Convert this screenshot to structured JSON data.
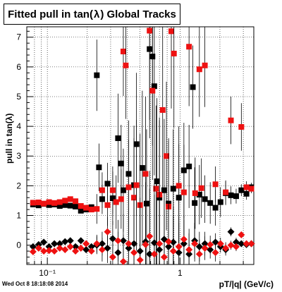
{
  "chart_data": {
    "type": "scatter",
    "title_prefix": "Fitted pull in tan(",
    "title_symbol": "λ",
    "title_suffix": ")  Global Tracks",
    "xlabel": "pT/|q| (GeV/c)",
    "ylabel_prefix": "pull in tan(",
    "ylabel_symbol": "λ",
    "ylabel_suffix": ")",
    "x_scale": "log",
    "xlim": [
      0.07,
      3.6
    ],
    "ylim": [
      -0.65,
      7.35
    ],
    "x_major_ticks": [
      {
        "value": 0.1,
        "label": "10⁻¹"
      },
      {
        "value": 1,
        "label": "1"
      }
    ],
    "y_major_ticks": [
      0,
      1,
      2,
      3,
      4,
      5,
      6,
      7
    ],
    "grid": true,
    "series": [
      {
        "marker": "square",
        "color": "#000000",
        "points": [
          [
            0.078,
            1.37,
            0.05
          ],
          [
            0.086,
            1.34,
            0.05
          ],
          [
            0.094,
            1.39,
            0.05
          ],
          [
            0.103,
            1.35,
            0.05
          ],
          [
            0.113,
            1.37,
            0.05
          ],
          [
            0.124,
            1.32,
            0.06
          ],
          [
            0.136,
            1.35,
            0.06
          ],
          [
            0.149,
            1.33,
            0.06
          ],
          [
            0.163,
            1.3,
            0.07
          ],
          [
            0.179,
            1.16,
            0.07
          ],
          [
            0.196,
            1.2,
            0.08
          ],
          [
            0.215,
            1.28,
            0.08
          ],
          [
            0.236,
            5.72,
            1.2
          ],
          [
            0.245,
            2.62,
            0.8
          ],
          [
            0.259,
            1.55,
            0.5
          ],
          [
            0.284,
            2.07,
            0.7
          ],
          [
            0.311,
            1.58,
            0.9
          ],
          [
            0.341,
            3.6,
            1.5
          ],
          [
            0.36,
            2.75,
            1.3
          ],
          [
            0.374,
            1.85,
            1.4
          ],
          [
            0.41,
            2.4,
            1.8
          ],
          [
            0.45,
            2.02,
            2.0
          ],
          [
            0.47,
            3.4,
            2.4
          ],
          [
            0.52,
            2.6,
            2.6
          ],
          [
            0.56,
            1.4,
            2.5
          ],
          [
            0.59,
            6.6,
            3.0
          ],
          [
            0.62,
            6.35,
            3.0
          ],
          [
            0.64,
            5.35,
            3.0
          ],
          [
            0.67,
            2.15,
            2.8
          ],
          [
            0.7,
            1.6,
            2.6
          ],
          [
            0.76,
            1.85,
            2.4
          ],
          [
            0.82,
            1.4,
            2.2
          ],
          [
            0.89,
            1.9,
            2.0
          ],
          [
            0.98,
            1.6,
            1.8
          ],
          [
            1.07,
            2.52,
            1.6
          ],
          [
            1.17,
            2.65,
            1.4
          ],
          [
            1.25,
            5.32,
            1.4
          ],
          [
            1.29,
            1.42,
            1.2
          ],
          [
            1.4,
            1.7,
            1.0
          ],
          [
            1.54,
            1.55,
            0.8
          ],
          [
            1.69,
            1.42,
            0.7
          ],
          [
            1.85,
            1.26,
            0.6
          ],
          [
            2.02,
            1.45,
            0.5
          ],
          [
            2.21,
            1.75,
            0.4
          ],
          [
            2.42,
            1.68,
            0.3
          ],
          [
            2.65,
            1.65,
            0.25
          ],
          [
            2.9,
            1.85,
            0.2
          ],
          [
            3.17,
            1.73,
            0.2
          ],
          [
            3.45,
            1.95,
            0.15
          ]
        ]
      },
      {
        "marker": "square",
        "color": "#ee1111",
        "points": [
          [
            0.078,
            1.43,
            0.05
          ],
          [
            0.086,
            1.44,
            0.05
          ],
          [
            0.094,
            1.4,
            0.05
          ],
          [
            0.103,
            1.45,
            0.05
          ],
          [
            0.113,
            1.42,
            0.05
          ],
          [
            0.124,
            1.45,
            0.06
          ],
          [
            0.136,
            1.5,
            0.06
          ],
          [
            0.149,
            1.55,
            0.06
          ],
          [
            0.163,
            1.48,
            0.07
          ],
          [
            0.179,
            1.32,
            0.07
          ],
          [
            0.196,
            1.26,
            0.08
          ],
          [
            0.215,
            1.2,
            0.08
          ],
          [
            0.236,
            1.22,
            0.5
          ],
          [
            0.259,
            1.85,
            0.6
          ],
          [
            0.284,
            1.35,
            0.7
          ],
          [
            0.311,
            1.85,
            0.8
          ],
          [
            0.33,
            1.45,
            0.9
          ],
          [
            0.36,
            1.55,
            1.0
          ],
          [
            0.374,
            6.52,
            1.5
          ],
          [
            0.39,
            6.05,
            1.8
          ],
          [
            0.41,
            1.95,
            1.6
          ],
          [
            0.45,
            1.6,
            2.0
          ],
          [
            0.47,
            2.02,
            2.2
          ],
          [
            0.5,
            1.35,
            2.4
          ],
          [
            0.55,
            2.4,
            2.6
          ],
          [
            0.59,
            7.22,
            3.0
          ],
          [
            0.62,
            5.2,
            3.0
          ],
          [
            0.66,
            1.9,
            2.8
          ],
          [
            0.7,
            1.7,
            2.6
          ],
          [
            0.74,
            4.55,
            2.8
          ],
          [
            0.79,
            3.0,
            2.5
          ],
          [
            0.82,
            1.3,
            2.2
          ],
          [
            0.86,
            7.2,
            2.6
          ],
          [
            0.9,
            6.45,
            2.5
          ],
          [
            0.98,
            2.0,
            2.0
          ],
          [
            1.07,
            1.78,
            1.6
          ],
          [
            1.17,
            6.68,
            2.0
          ],
          [
            1.3,
            1.75,
            1.2
          ],
          [
            1.4,
            5.92,
            1.6
          ],
          [
            1.45,
            1.92,
            1.0
          ],
          [
            1.54,
            6.05,
            1.4
          ],
          [
            1.85,
            2.05,
            0.6
          ],
          [
            2.21,
            1.78,
            0.4
          ],
          [
            2.42,
            4.2,
            0.8
          ],
          [
            2.9,
            3.98,
            0.8
          ],
          [
            3.17,
            1.95,
            0.2
          ],
          [
            3.45,
            1.9,
            0.15
          ]
        ]
      },
      {
        "marker": "diamond",
        "color": "#000000",
        "points": [
          [
            0.078,
            -0.05,
            0.05
          ],
          [
            0.086,
            0.02,
            0.05
          ],
          [
            0.094,
            0.1,
            0.05
          ],
          [
            0.103,
            -0.05,
            0.05
          ],
          [
            0.113,
            0.05,
            0.06
          ],
          [
            0.124,
            0.05,
            0.06
          ],
          [
            0.136,
            0.12,
            0.06
          ],
          [
            0.149,
            0.15,
            0.07
          ],
          [
            0.163,
            -0.05,
            0.07
          ],
          [
            0.179,
            0.15,
            0.08
          ],
          [
            0.196,
            -0.15,
            0.08
          ],
          [
            0.215,
            -0.05,
            0.1
          ],
          [
            0.236,
            0.0,
            0.3
          ],
          [
            0.259,
            0.05,
            0.4
          ],
          [
            0.284,
            -0.1,
            0.5
          ],
          [
            0.311,
            0.22,
            0.6
          ],
          [
            0.341,
            -0.25,
            0.7
          ],
          [
            0.374,
            0.15,
            0.9
          ],
          [
            0.41,
            -0.1,
            1.2
          ],
          [
            0.45,
            0.05,
            1.5
          ],
          [
            0.5,
            -0.2,
            1.8
          ],
          [
            0.55,
            0.12,
            2.0
          ],
          [
            0.59,
            -0.3,
            2.2
          ],
          [
            0.64,
            0.08,
            2.0
          ],
          [
            0.7,
            -0.15,
            1.8
          ],
          [
            0.76,
            0.2,
            1.6
          ],
          [
            0.82,
            -0.05,
            1.4
          ],
          [
            0.89,
            0.1,
            1.2
          ],
          [
            0.98,
            -0.25,
            1.0
          ],
          [
            1.07,
            0.05,
            0.8
          ],
          [
            1.17,
            -0.3,
            0.7
          ],
          [
            1.29,
            0.15,
            0.6
          ],
          [
            1.4,
            -0.05,
            0.5
          ],
          [
            1.54,
            0.05,
            0.4
          ],
          [
            1.69,
            -0.15,
            0.3
          ],
          [
            1.85,
            0.1,
            0.3
          ],
          [
            2.02,
            -0.05,
            0.2
          ],
          [
            2.21,
            -0.15,
            0.2
          ],
          [
            2.42,
            0.45,
            0.15
          ],
          [
            2.65,
            0.1,
            0.15
          ],
          [
            2.9,
            0.05,
            0.1
          ],
          [
            3.17,
            0.02,
            0.1
          ],
          [
            3.45,
            0.05,
            0.1
          ]
        ]
      },
      {
        "marker": "diamond",
        "color": "#ee1111",
        "points": [
          [
            0.078,
            -0.22,
            0.05
          ],
          [
            0.086,
            -0.1,
            0.05
          ],
          [
            0.094,
            -0.2,
            0.05
          ],
          [
            0.103,
            -0.18,
            0.05
          ],
          [
            0.113,
            -0.2,
            0.06
          ],
          [
            0.124,
            -0.1,
            0.06
          ],
          [
            0.136,
            -0.15,
            0.06
          ],
          [
            0.149,
            -0.05,
            0.07
          ],
          [
            0.163,
            -0.2,
            0.07
          ],
          [
            0.179,
            -0.1,
            0.08
          ],
          [
            0.196,
            0.05,
            0.08
          ],
          [
            0.215,
            -0.2,
            0.1
          ],
          [
            0.236,
            0.05,
            0.3
          ],
          [
            0.259,
            -0.15,
            0.4
          ],
          [
            0.284,
            0.45,
            0.5
          ],
          [
            0.311,
            -0.4,
            0.6
          ],
          [
            0.341,
            0.15,
            0.7
          ],
          [
            0.374,
            -0.55,
            0.9
          ],
          [
            0.41,
            0.05,
            1.2
          ],
          [
            0.45,
            -0.25,
            1.5
          ],
          [
            0.5,
            -0.5,
            1.8
          ],
          [
            0.55,
            0.02,
            2.0
          ],
          [
            0.59,
            0.3,
            2.2
          ],
          [
            0.64,
            -0.3,
            2.0
          ],
          [
            0.7,
            0.05,
            1.8
          ],
          [
            0.76,
            -0.4,
            1.6
          ],
          [
            0.82,
            0.12,
            1.4
          ],
          [
            0.89,
            -0.2,
            1.2
          ],
          [
            0.98,
            -0.05,
            1.0
          ],
          [
            1.07,
            0.2,
            0.8
          ],
          [
            1.17,
            -0.15,
            0.7
          ],
          [
            1.29,
            0.05,
            0.6
          ],
          [
            1.4,
            -0.3,
            0.5
          ],
          [
            1.54,
            -0.1,
            0.4
          ],
          [
            1.69,
            0.02,
            0.3
          ],
          [
            1.85,
            -0.25,
            0.3
          ],
          [
            2.02,
            0.05,
            0.2
          ],
          [
            2.21,
            -0.1,
            0.2
          ],
          [
            2.42,
            0.0,
            0.15
          ],
          [
            2.65,
            -0.05,
            0.15
          ],
          [
            2.9,
            0.35,
            0.1
          ],
          [
            3.17,
            0.05,
            0.1
          ],
          [
            3.45,
            0.05,
            0.1
          ]
        ]
      }
    ]
  },
  "footer": {
    "timestamp": "Wed Oct  8 18:18:08 2014"
  }
}
